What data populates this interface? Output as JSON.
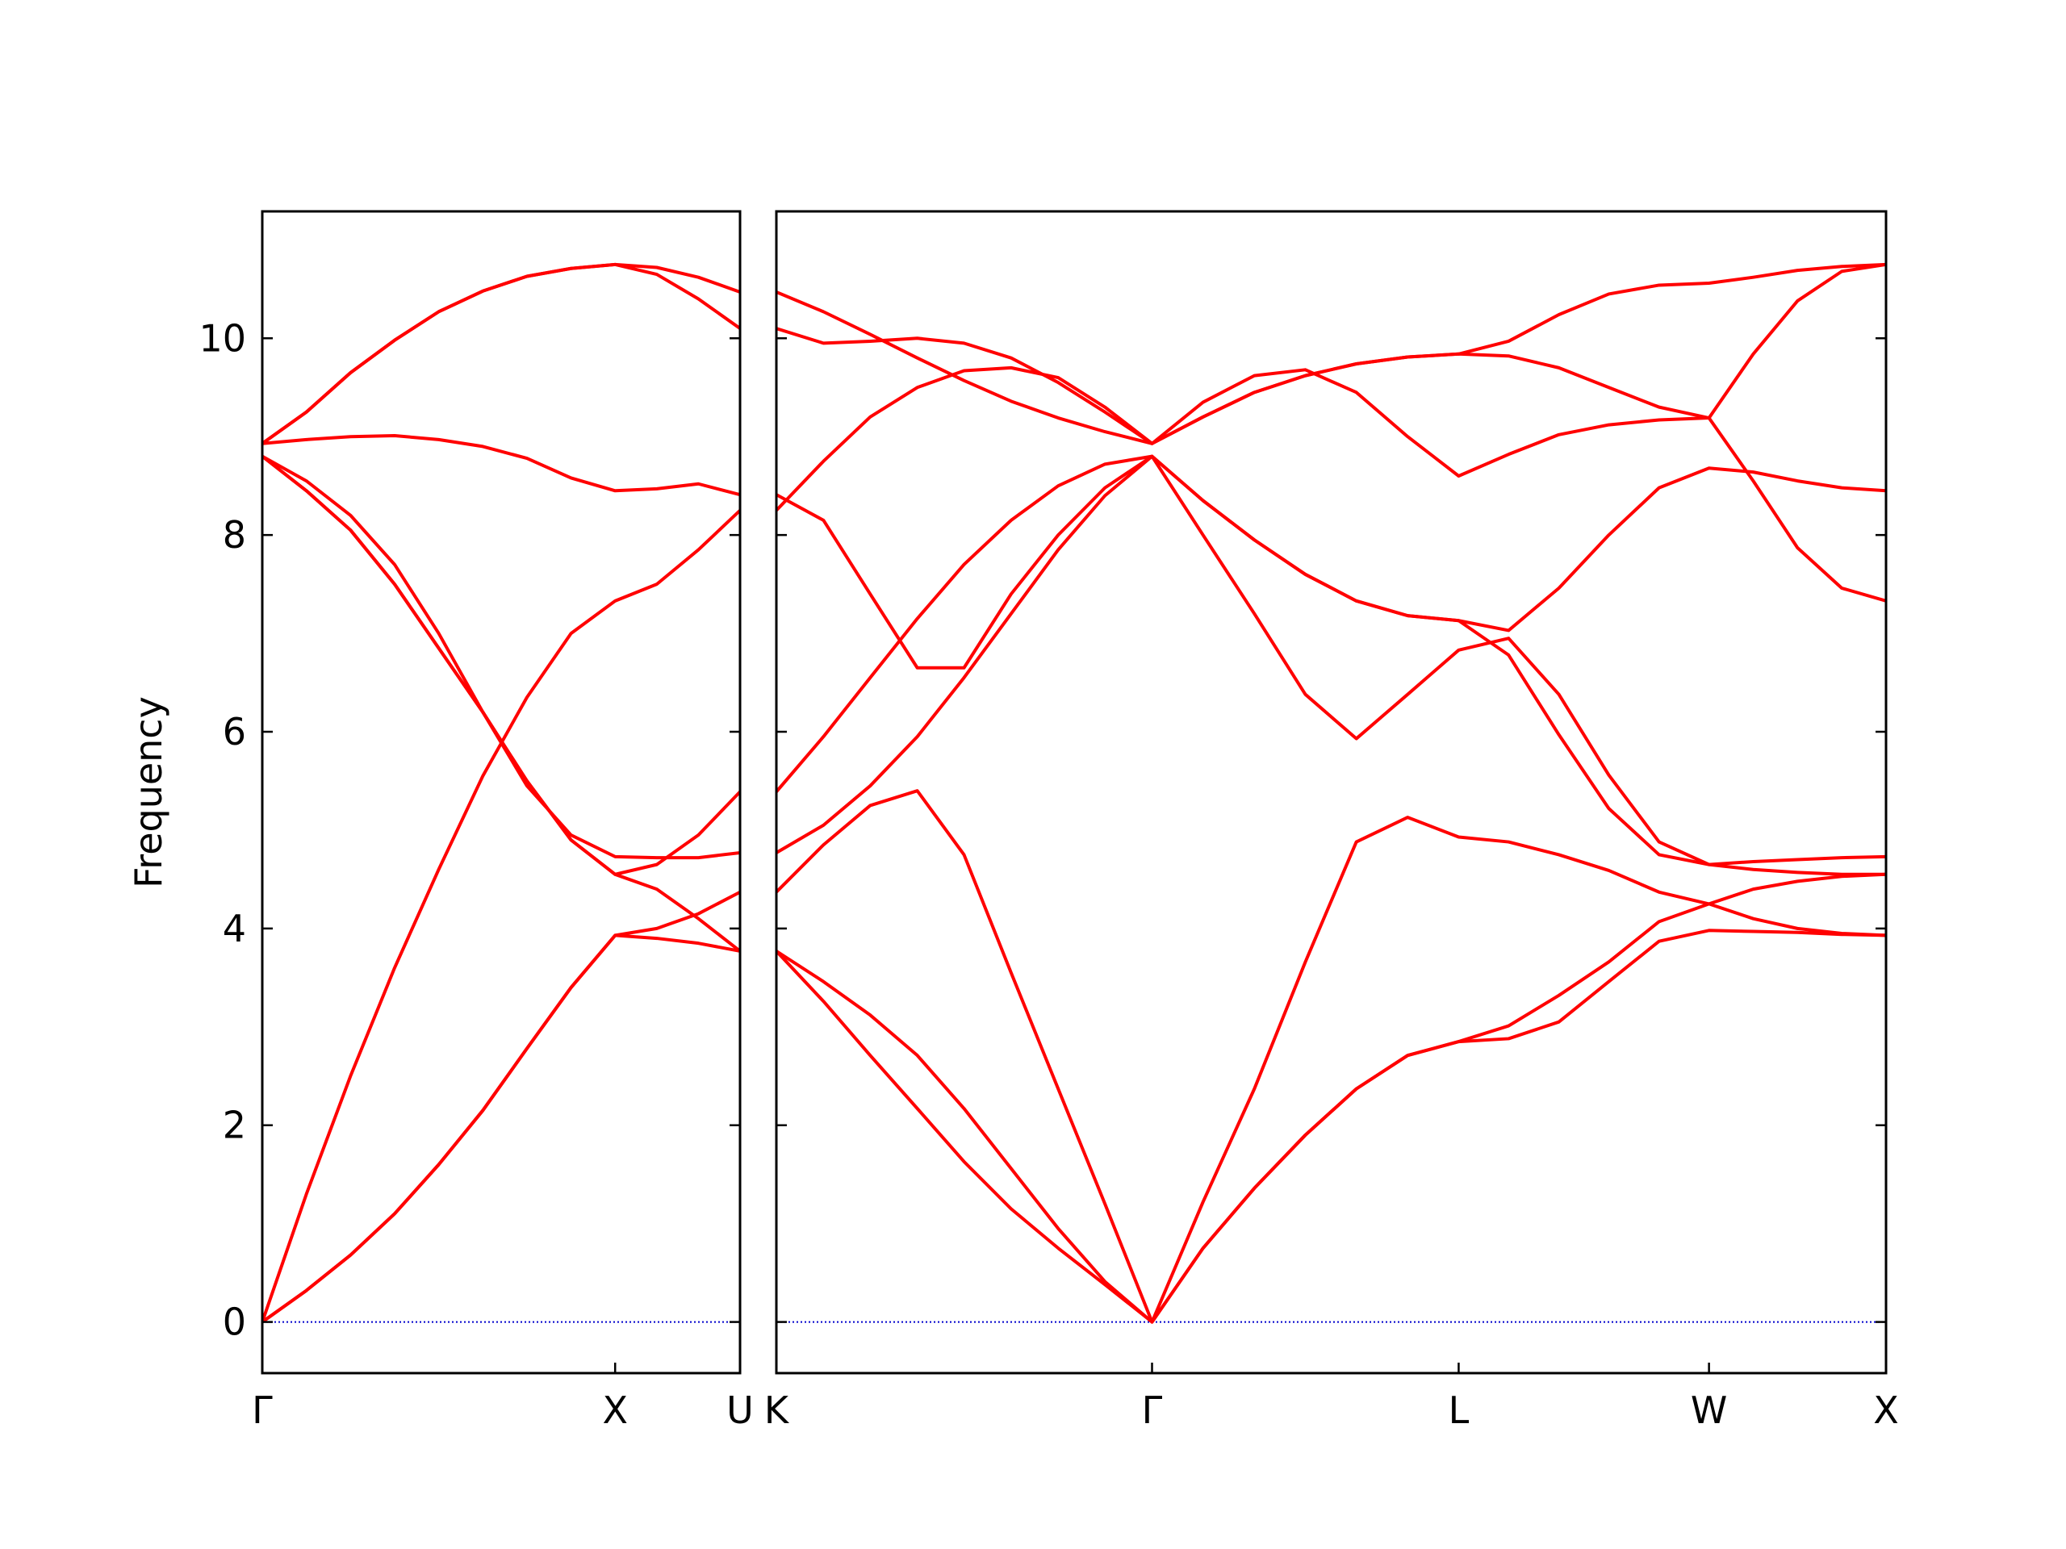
{
  "chart_data": [
    {
      "type": "line",
      "y_label": "Frequency",
      "ytick_labels": true,
      "zero_line_color": "#0000cc",
      "xlim": [
        0,
        1.354
      ],
      "ylim": [
        -0.52,
        11.29
      ],
      "xticks": [
        {
          "value": 0,
          "label": "Γ"
        },
        {
          "value": 1,
          "label": "X"
        },
        {
          "value": 1.354,
          "label": "U"
        }
      ],
      "yticks": [
        0,
        2,
        4,
        6,
        8,
        10
      ],
      "x": [
        0,
        0.125,
        0.25,
        0.375,
        0.5,
        0.625,
        0.75,
        0.875,
        1.0,
        1.118,
        1.236,
        1.354
      ],
      "series": [
        {
          "color": "#ff0000",
          "values": [
            0,
            0.32,
            0.68,
            1.1,
            1.6,
            2.15,
            2.78,
            3.4,
            3.93,
            3.9,
            3.85,
            3.77
          ]
        },
        {
          "color": "#ff0000",
          "values": [
            0,
            0.32,
            0.68,
            1.1,
            1.6,
            2.15,
            2.78,
            3.4,
            3.93,
            4.0,
            4.15,
            4.37
          ]
        },
        {
          "color": "#ff0000",
          "values": [
            0,
            1.3,
            2.5,
            3.6,
            4.6,
            5.55,
            6.35,
            7.0,
            7.33,
            7.5,
            7.85,
            8.25
          ]
        },
        {
          "color": "#ff0000",
          "values": [
            8.8,
            8.45,
            8.05,
            7.5,
            6.85,
            6.2,
            5.5,
            4.9,
            4.55,
            4.65,
            4.95,
            5.39
          ]
        },
        {
          "color": "#ff0000",
          "values": [
            8.8,
            8.45,
            8.05,
            7.5,
            6.85,
            6.2,
            5.5,
            4.9,
            4.55,
            4.4,
            4.1,
            3.77
          ]
        },
        {
          "color": "#ff0000",
          "values": [
            8.8,
            8.55,
            8.2,
            7.7,
            7.0,
            6.2,
            5.45,
            4.95,
            4.73,
            4.72,
            4.72,
            4.77
          ]
        },
        {
          "color": "#ff0000",
          "values": [
            8.93,
            8.97,
            9.0,
            9.01,
            8.97,
            8.9,
            8.78,
            8.58,
            8.45,
            8.47,
            8.52,
            8.41
          ]
        },
        {
          "color": "#ff0000",
          "values": [
            8.93,
            9.25,
            9.65,
            9.98,
            10.27,
            10.48,
            10.63,
            10.71,
            10.75,
            10.72,
            10.62,
            10.47
          ]
        },
        {
          "color": "#ff0000",
          "values": [
            8.93,
            9.25,
            9.65,
            9.98,
            10.27,
            10.48,
            10.63,
            10.71,
            10.75,
            10.65,
            10.4,
            10.1
          ]
        }
      ]
    },
    {
      "type": "line",
      "ytick_labels": false,
      "zero_line_color": "#0000cc",
      "xlim": [
        1.354,
        4.488
      ],
      "ylim": [
        -0.52,
        11.29
      ],
      "xticks": [
        {
          "value": 1.354,
          "label": "K"
        },
        {
          "value": 2.415,
          "label": "Γ"
        },
        {
          "value": 3.281,
          "label": "L"
        },
        {
          "value": 3.988,
          "label": "W"
        },
        {
          "value": 4.488,
          "label": "X"
        }
      ],
      "yticks": [
        0,
        2,
        4,
        6,
        8,
        10
      ],
      "x": [
        1.354,
        1.487,
        1.619,
        1.752,
        1.884,
        2.017,
        2.15,
        2.282,
        2.415,
        2.559,
        2.704,
        2.848,
        2.992,
        3.137,
        3.281,
        3.422,
        3.564,
        3.705,
        3.847,
        3.988,
        4.113,
        4.238,
        4.363,
        4.488
      ],
      "series": [
        {
          "color": "#ff0000",
          "values": [
            10.47,
            10.27,
            10.04,
            9.8,
            9.57,
            9.36,
            9.19,
            9.05,
            8.93,
            9.35,
            9.62,
            9.68,
            9.45,
            9.0,
            8.6,
            8.82,
            9.02,
            9.12,
            9.17,
            9.19,
            9.84,
            10.38,
            10.68,
            10.75
          ]
        },
        {
          "color": "#ff0000",
          "values": [
            10.1,
            9.95,
            9.97,
            10.0,
            9.95,
            9.8,
            9.55,
            9.25,
            8.93,
            9.2,
            9.45,
            9.62,
            9.74,
            9.81,
            9.84,
            9.97,
            10.24,
            10.45,
            10.54,
            10.56,
            10.62,
            10.69,
            10.73,
            10.75
          ]
        },
        {
          "color": "#ff0000",
          "values": [
            8.25,
            8.75,
            9.2,
            9.5,
            9.67,
            9.7,
            9.6,
            9.3,
            8.93,
            9.2,
            9.45,
            9.62,
            9.74,
            9.81,
            9.84,
            9.82,
            9.7,
            9.5,
            9.3,
            9.19,
            8.55,
            7.87,
            7.46,
            7.33
          ]
        },
        {
          "color": "#ff0000",
          "values": [
            8.41,
            8.15,
            7.4,
            6.65,
            6.65,
            7.4,
            8.0,
            8.48,
            8.8,
            8.35,
            7.95,
            7.6,
            7.33,
            7.18,
            7.13,
            7.03,
            7.46,
            8.0,
            8.48,
            8.68,
            8.64,
            8.55,
            8.48,
            8.45
          ]
        },
        {
          "color": "#ff0000",
          "values": [
            5.39,
            5.95,
            6.55,
            7.15,
            7.7,
            8.15,
            8.5,
            8.72,
            8.8,
            8.35,
            7.95,
            7.6,
            7.33,
            7.18,
            7.13,
            6.78,
            5.97,
            5.22,
            4.75,
            4.65,
            4.68,
            4.7,
            4.72,
            4.73
          ]
        },
        {
          "color": "#ff0000",
          "values": [
            4.77,
            5.05,
            5.45,
            5.95,
            6.55,
            7.2,
            7.85,
            8.4,
            8.8,
            8.0,
            7.2,
            6.38,
            5.93,
            6.38,
            6.83,
            6.95,
            6.38,
            5.56,
            4.88,
            4.65,
            4.6,
            4.57,
            4.55,
            4.55
          ]
        },
        {
          "color": "#ff0000",
          "values": [
            4.37,
            4.85,
            5.25,
            5.4,
            4.75,
            3.55,
            2.37,
            1.2,
            0,
            1.22,
            2.37,
            3.66,
            4.88,
            5.13,
            4.93,
            4.88,
            4.75,
            4.59,
            4.37,
            4.25,
            4.1,
            4.0,
            3.95,
            3.93
          ]
        },
        {
          "color": "#ff0000",
          "values": [
            3.77,
            3.46,
            3.12,
            2.71,
            2.17,
            1.56,
            0.95,
            0.41,
            0,
            0.75,
            1.36,
            1.9,
            2.37,
            2.71,
            2.85,
            3.01,
            3.32,
            3.66,
            4.07,
            4.25,
            4.4,
            4.48,
            4.53,
            4.55
          ]
        },
        {
          "color": "#ff0000",
          "values": [
            3.77,
            3.26,
            2.71,
            2.17,
            1.63,
            1.15,
            0.75,
            0.38,
            0,
            0.75,
            1.36,
            1.9,
            2.37,
            2.71,
            2.85,
            2.88,
            3.05,
            3.46,
            3.87,
            3.98,
            3.97,
            3.96,
            3.94,
            3.93
          ]
        }
      ]
    }
  ]
}
